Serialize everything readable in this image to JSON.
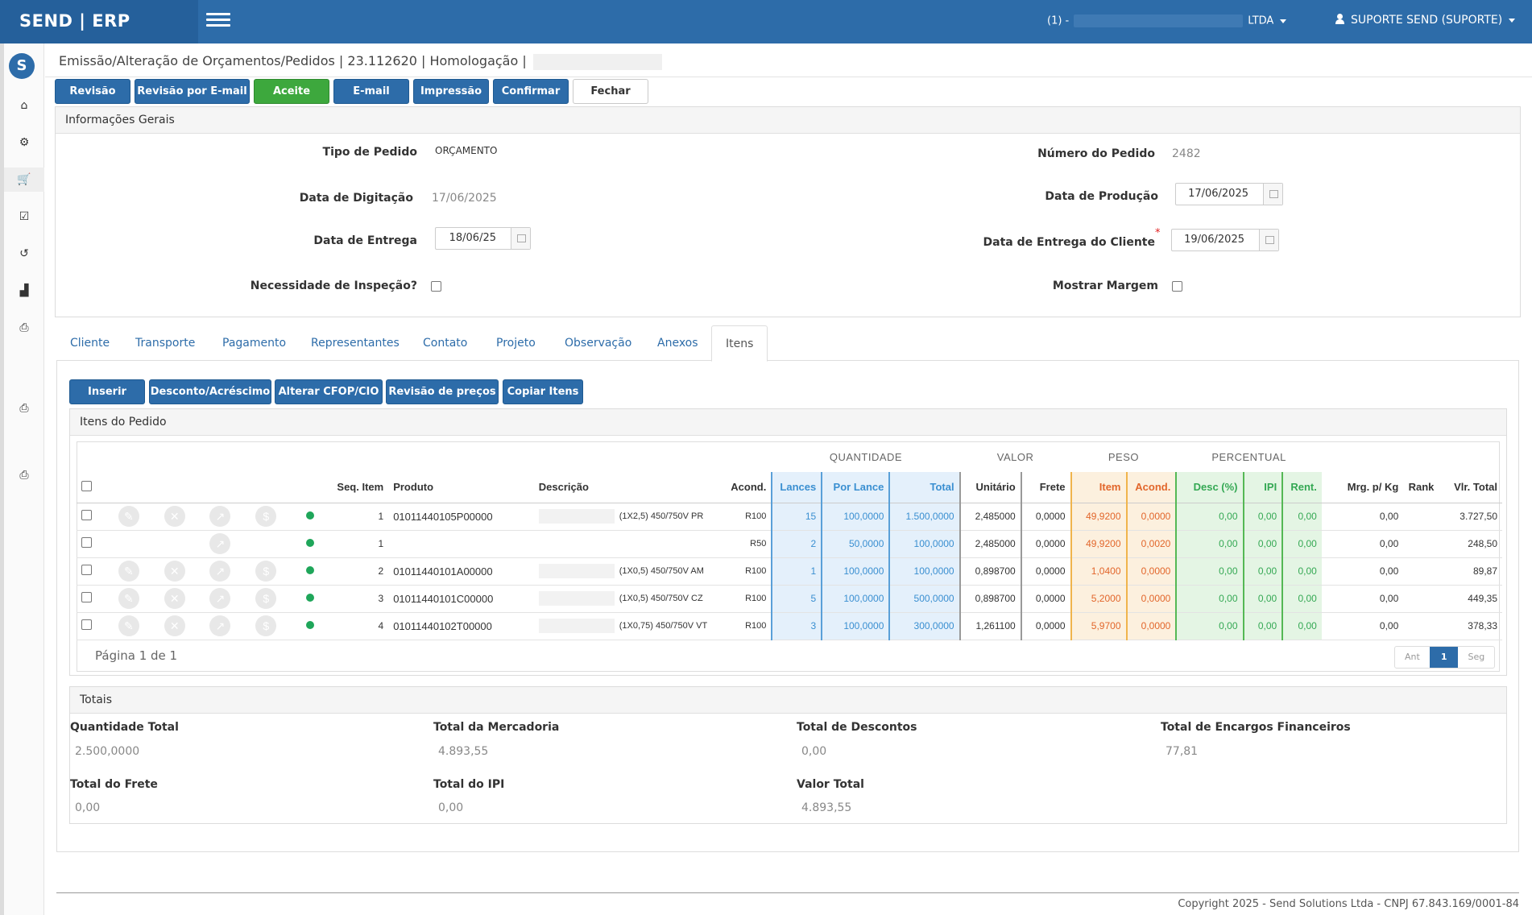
{
  "app": {
    "brand": "SEND | ERP",
    "company": "(1) -",
    "company_suffix": "LTDA",
    "user": "SUPORTE SEND (SUPORTE)"
  },
  "page": {
    "title": "Emissão/Alteração de Orçamentos/Pedidos | 23.112620 | Homologação |"
  },
  "toolbar": {
    "revisao": "Revisão",
    "revisao_email": "Revisão por E-mail",
    "aceite": "Aceite",
    "email": "E-mail",
    "impressao": "Impressão",
    "confirmar": "Confirmar",
    "fechar": "Fechar"
  },
  "info": {
    "title": "Informações Gerais",
    "tipo_label": "Tipo de Pedido",
    "tipo_value": "ORÇAMENTO",
    "numero_label": "Número do Pedido",
    "numero_value": "2482",
    "digitacao_label": "Data de Digitação",
    "digitacao_value": "17/06/2025",
    "producao_label": "Data de Produção",
    "producao_value": "17/06/2025",
    "entrega_label": "Data de Entrega",
    "entrega_value": "18/06/25",
    "entrega_cliente_label": "Data de Entrega do Cliente",
    "entrega_cliente_value": "19/06/2025",
    "required_mark": "*",
    "inspecao_label": "Necessidade de Inspeção?",
    "margem_label": "Mostrar Margem"
  },
  "tabs": [
    "Cliente",
    "Transporte",
    "Pagamento",
    "Representantes",
    "Contato",
    "Projeto",
    "Observação",
    "Anexos",
    "Itens"
  ],
  "items_toolbar": {
    "inserir": "Inserir",
    "desconto": "Desconto/Acréscimo",
    "cfop": "Alterar CFOP/CIO",
    "revisao_precos": "Revisão de preços",
    "copiar": "Copiar Itens"
  },
  "items": {
    "title": "Itens do Pedido",
    "groups": {
      "quantidade": "QUANTIDADE",
      "valor": "VALOR",
      "peso": "PESO",
      "percentual": "PERCENTUAL"
    },
    "headers": {
      "seq": "Seq. Item",
      "produto": "Produto",
      "descricao": "Descrição",
      "acond": "Acond.",
      "lances": "Lances",
      "por_lance": "Por Lance",
      "total": "Total",
      "unitario": "Unitário",
      "frete": "Frete",
      "peso_item": "Item",
      "peso_acond": "Acond.",
      "desc": "Desc (%)",
      "ipi": "IPI",
      "rent": "Rent.",
      "mrg": "Mrg. p/ Kg",
      "rank": "Rank",
      "vlr_total": "Vlr. Total"
    },
    "rows": [
      {
        "seq": "1",
        "produto": "01011440105P00000",
        "descricao": "(1X2,5) 450/750V PR",
        "acond": "R100",
        "lances": "15",
        "por_lance": "100,0000",
        "total": "1.500,0000",
        "unitario": "2,485000",
        "frete": "0,0000",
        "peso_item": "49,9200",
        "peso_acond": "0,0000",
        "desc": "0,00",
        "ipi": "0,00",
        "rent": "0,00",
        "mrg": "0,00",
        "rank": "",
        "vlr_total": "3.727,50",
        "full_actions": true
      },
      {
        "seq": "1",
        "produto": "",
        "descricao": "",
        "acond": "R50",
        "lances": "2",
        "por_lance": "50,0000",
        "total": "100,0000",
        "unitario": "2,485000",
        "frete": "0,0000",
        "peso_item": "49,9200",
        "peso_acond": "0,0020",
        "desc": "0,00",
        "ipi": "0,00",
        "rent": "0,00",
        "mrg": "0,00",
        "rank": "",
        "vlr_total": "248,50",
        "full_actions": false
      },
      {
        "seq": "2",
        "produto": "01011440101A00000",
        "descricao": "(1X0,5) 450/750V AM",
        "acond": "R100",
        "lances": "1",
        "por_lance": "100,0000",
        "total": "100,0000",
        "unitario": "0,898700",
        "frete": "0,0000",
        "peso_item": "1,0400",
        "peso_acond": "0,0000",
        "desc": "0,00",
        "ipi": "0,00",
        "rent": "0,00",
        "mrg": "0,00",
        "rank": "",
        "vlr_total": "89,87",
        "full_actions": true
      },
      {
        "seq": "3",
        "produto": "01011440101C00000",
        "descricao": "(1X0,5) 450/750V CZ",
        "acond": "R100",
        "lances": "5",
        "por_lance": "100,0000",
        "total": "500,0000",
        "unitario": "0,898700",
        "frete": "0,0000",
        "peso_item": "5,2000",
        "peso_acond": "0,0000",
        "desc": "0,00",
        "ipi": "0,00",
        "rent": "0,00",
        "mrg": "0,00",
        "rank": "",
        "vlr_total": "449,35",
        "full_actions": true
      },
      {
        "seq": "4",
        "produto": "01011440102T00000",
        "descricao": "(1X0,75) 450/750V VT",
        "acond": "R100",
        "lances": "3",
        "por_lance": "100,0000",
        "total": "300,0000",
        "unitario": "1,261100",
        "frete": "0,0000",
        "peso_item": "5,9700",
        "peso_acond": "0,0000",
        "desc": "0,00",
        "ipi": "0,00",
        "rent": "0,00",
        "mrg": "0,00",
        "rank": "",
        "vlr_total": "378,33",
        "full_actions": true
      }
    ],
    "page_info": "Página 1 de 1",
    "pager": {
      "prev": "Ant",
      "current": "1",
      "next": "Seg"
    }
  },
  "totals": {
    "title": "Totais",
    "quantidade_label": "Quantidade Total",
    "quantidade_value": "2.500,0000",
    "mercadoria_label": "Total da Mercadoria",
    "mercadoria_value": "4.893,55",
    "descontos_label": "Total de Descontos",
    "descontos_value": "0,00",
    "encargos_label": "Total de Encargos Financeiros",
    "encargos_value": "77,81",
    "frete_label": "Total do Frete",
    "frete_value": "0,00",
    "ipi_label": "Total do IPI",
    "ipi_value": "0,00",
    "valor_label": "Valor Total",
    "valor_value": "4.893,55"
  },
  "footer": {
    "copyright": "Copyright 2025 - Send Solutions Ltda - CNPJ 67.843.169/0001-84"
  }
}
